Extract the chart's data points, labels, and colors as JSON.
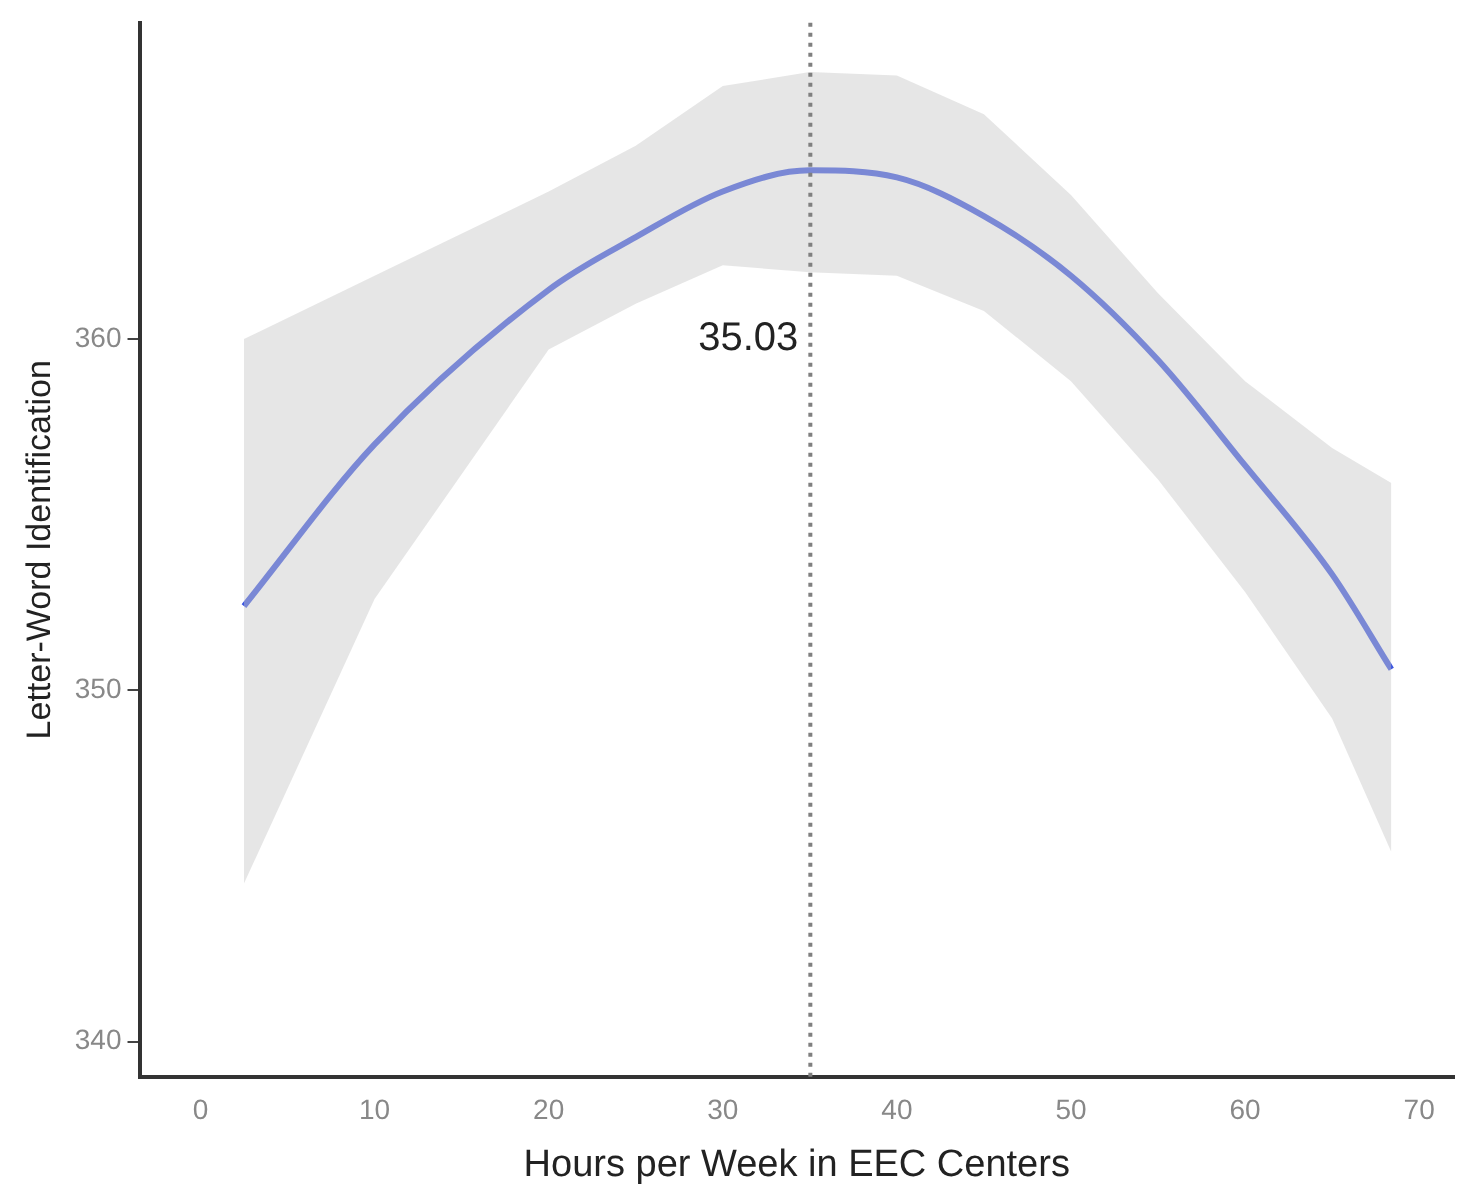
{
  "chart_data": {
    "type": "line",
    "xlabel": "Hours per Week in EEC Centers",
    "ylabel": "Letter-Word Identification",
    "xlim": [
      -3.5,
      72
    ],
    "xticks": [
      0,
      10,
      20,
      30,
      40,
      50,
      60,
      70
    ],
    "ylim": [
      339,
      369
    ],
    "yticks": [
      340,
      350,
      360
    ],
    "grid": false,
    "legend": false,
    "marker": "none",
    "series": [
      {
        "color": "#3b55e0",
        "x": [
          2.5,
          10,
          20,
          25,
          30,
          35,
          40,
          45,
          50,
          55,
          60,
          65,
          68.4
        ],
        "values": [
          352.4,
          357.0,
          361.4,
          362.9,
          364.2,
          364.8,
          364.6,
          363.5,
          361.8,
          359.4,
          356.4,
          353.3,
          350.6
        ],
        "lower": [
          344.5,
          352.6,
          359.7,
          361.0,
          362.1,
          361.9,
          361.8,
          360.8,
          358.8,
          356.0,
          352.8,
          349.2,
          345.4
        ],
        "upper": [
          360.0,
          361.8,
          364.2,
          365.5,
          367.2,
          367.6,
          367.5,
          366.4,
          364.1,
          361.3,
          358.8,
          356.9,
          355.9
        ]
      }
    ],
    "ref_lines": [
      {
        "axis": "x",
        "value": 35.03,
        "label": "35.03",
        "line_style": "dotted",
        "color": "#808080"
      }
    ]
  }
}
